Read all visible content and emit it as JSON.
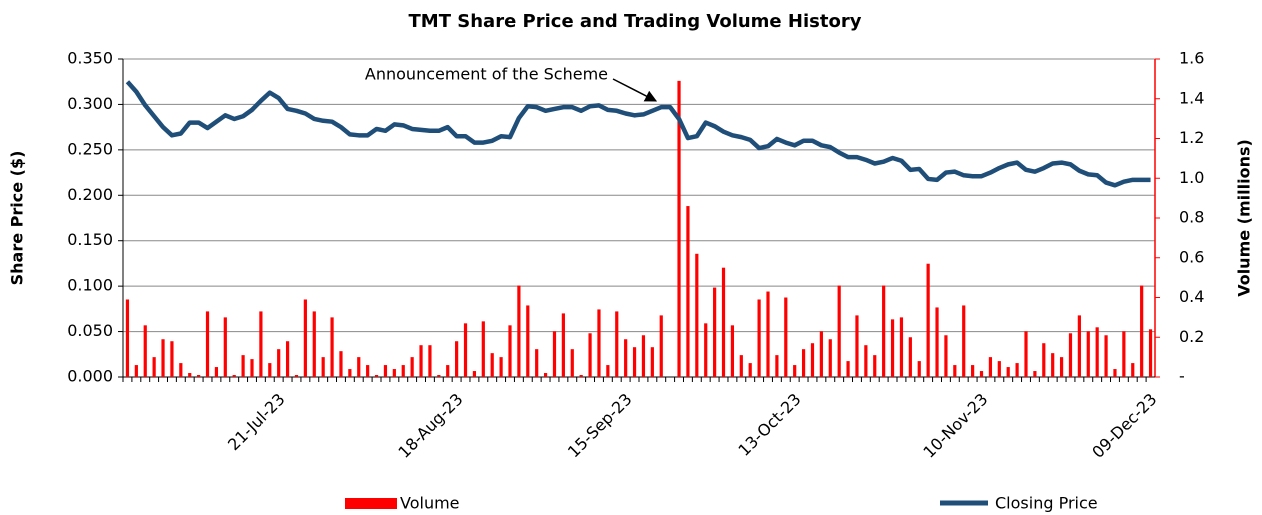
{
  "chart_data": {
    "type": "combo",
    "title": "TMT Share Price and Trading Volume History",
    "y_label": "Share Price ($)",
    "y2_label": "Volume (millions)",
    "annotations": [
      "Announcement of the Scheme"
    ],
    "categories": [
      null,
      null,
      null,
      null,
      null,
      null,
      null,
      null,
      null,
      null,
      null,
      null,
      null,
      null,
      null,
      null,
      null,
      "21-Jul-23",
      null,
      null,
      null,
      null,
      null,
      null,
      null,
      null,
      null,
      null,
      null,
      null,
      null,
      null,
      null,
      null,
      null,
      null,
      null,
      "18-Aug-23",
      null,
      null,
      null,
      null,
      null,
      null,
      null,
      null,
      null,
      null,
      null,
      null,
      null,
      null,
      null,
      null,
      null,
      null,
      "15-Sep-23",
      null,
      null,
      null,
      null,
      null,
      null,
      null,
      null,
      null,
      null,
      null,
      null,
      null,
      null,
      null,
      null,
      null,
      null,
      "13-Oct-23",
      null,
      null,
      null,
      null,
      null,
      null,
      null,
      null,
      null,
      null,
      null,
      null,
      null,
      null,
      null,
      null,
      null,
      null,
      null,
      null,
      "10-Nov-23",
      null,
      null,
      null,
      null,
      null,
      null,
      null,
      null,
      null,
      null,
      null,
      null,
      null,
      null,
      null,
      null,
      null,
      null,
      "09-Dec-23"
    ],
    "series": [
      {
        "name": "Volume",
        "type": "bar",
        "axis": "y2",
        "color": "#ff0000",
        "values": [
          0.39,
          0.06,
          0.26,
          0.1,
          0.19,
          0.18,
          0.07,
          0.02,
          0.01,
          0.33,
          0.05,
          0.3,
          0.01,
          0.11,
          0.09,
          0.33,
          0.07,
          0.14,
          0.18,
          0.01,
          0.39,
          0.33,
          0.1,
          0.3,
          0.13,
          0.04,
          0.1,
          0.06,
          0.01,
          0.06,
          0.04,
          0.06,
          0.1,
          0.16,
          0.16,
          0.01,
          0.06,
          0.18,
          0.27,
          0.03,
          0.28,
          0.12,
          0.1,
          0.26,
          0.46,
          0.36,
          0.14,
          0.02,
          0.23,
          0.32,
          0.14,
          0.01,
          0.22,
          0.34,
          0.06,
          0.33,
          0.19,
          0.15,
          0.21,
          0.15,
          0.31,
          0,
          1.49,
          0.86,
          0.62,
          0.27,
          0.45,
          0.55,
          0.26,
          0.11,
          0.07,
          0.39,
          0.43,
          0.11,
          0.4,
          0.06,
          0.14,
          0.17,
          0.23,
          0.19,
          0.46,
          0.08,
          0.31,
          0.16,
          0.11,
          0.46,
          0.29,
          0.3,
          0.2,
          0.08,
          0.57,
          0.35,
          0.21,
          0.06,
          0.36,
          0.06,
          0.03,
          0.1,
          0.08,
          0.05,
          0.07,
          0.23,
          0.03,
          0.17,
          0.12,
          0.1,
          0.22,
          0.31,
          0.23,
          0.25,
          0.21,
          0.04,
          0.23,
          0.07,
          0.46,
          0.24
        ]
      },
      {
        "name": "Closing Price",
        "type": "line",
        "color": "#1f4e79",
        "values": [
          0.325,
          0.314,
          0.299,
          0.287,
          0.275,
          0.266,
          0.268,
          0.28,
          0.28,
          0.274,
          0.281,
          0.288,
          0.284,
          0.287,
          0.294,
          0.304,
          0.313,
          0.307,
          0.295,
          0.293,
          0.29,
          0.284,
          0.282,
          0.281,
          0.275,
          0.267,
          0.266,
          0.266,
          0.273,
          0.271,
          0.278,
          0.277,
          0.273,
          0.272,
          0.271,
          0.271,
          0.275,
          0.265,
          0.265,
          0.258,
          0.258,
          0.26,
          0.265,
          0.264,
          0.285,
          0.298,
          0.297,
          0.293,
          0.295,
          0.297,
          0.297,
          0.293,
          0.298,
          0.299,
          0.294,
          0.293,
          0.29,
          0.288,
          0.289,
          0.293,
          0.297,
          0.297,
          0.284,
          0.263,
          0.265,
          0.28,
          0.276,
          0.27,
          0.266,
          0.264,
          0.261,
          0.252,
          0.254,
          0.262,
          0.258,
          0.255,
          0.26,
          0.26,
          0.255,
          0.253,
          0.247,
          0.242,
          0.242,
          0.239,
          0.235,
          0.237,
          0.241,
          0.238,
          0.228,
          0.229,
          0.218,
          0.217,
          0.225,
          0.226,
          0.222,
          0.221,
          0.221,
          0.225,
          0.23,
          0.234,
          0.236,
          0.228,
          0.226,
          0.23,
          0.235,
          0.236,
          0.234,
          0.227,
          0.223,
          0.222,
          0.214,
          0.211,
          0.215,
          0.217,
          0.217,
          0.217
        ]
      }
    ],
    "ylim": [
      0,
      0.35
    ],
    "yticks": [
      {
        "value": 0,
        "label": "0.000"
      },
      {
        "value": 0.05,
        "label": "0.050"
      },
      {
        "value": 0.1,
        "label": "0.100"
      },
      {
        "value": 0.15,
        "label": "0.150"
      },
      {
        "value": 0.2,
        "label": "0.200"
      },
      {
        "value": 0.25,
        "label": "0.250"
      },
      {
        "value": 0.3,
        "label": "0.300"
      },
      {
        "value": 0.35,
        "label": "0.350"
      }
    ],
    "y2lim": [
      0,
      1.6
    ],
    "y2ticks": [
      {
        "value": 0,
        "label": "-"
      },
      0.2,
      0.4,
      0.6,
      0.8,
      {
        "value": 1,
        "label": "1.0"
      },
      1.2,
      1.4,
      1.6
    ],
    "grid": true
  }
}
